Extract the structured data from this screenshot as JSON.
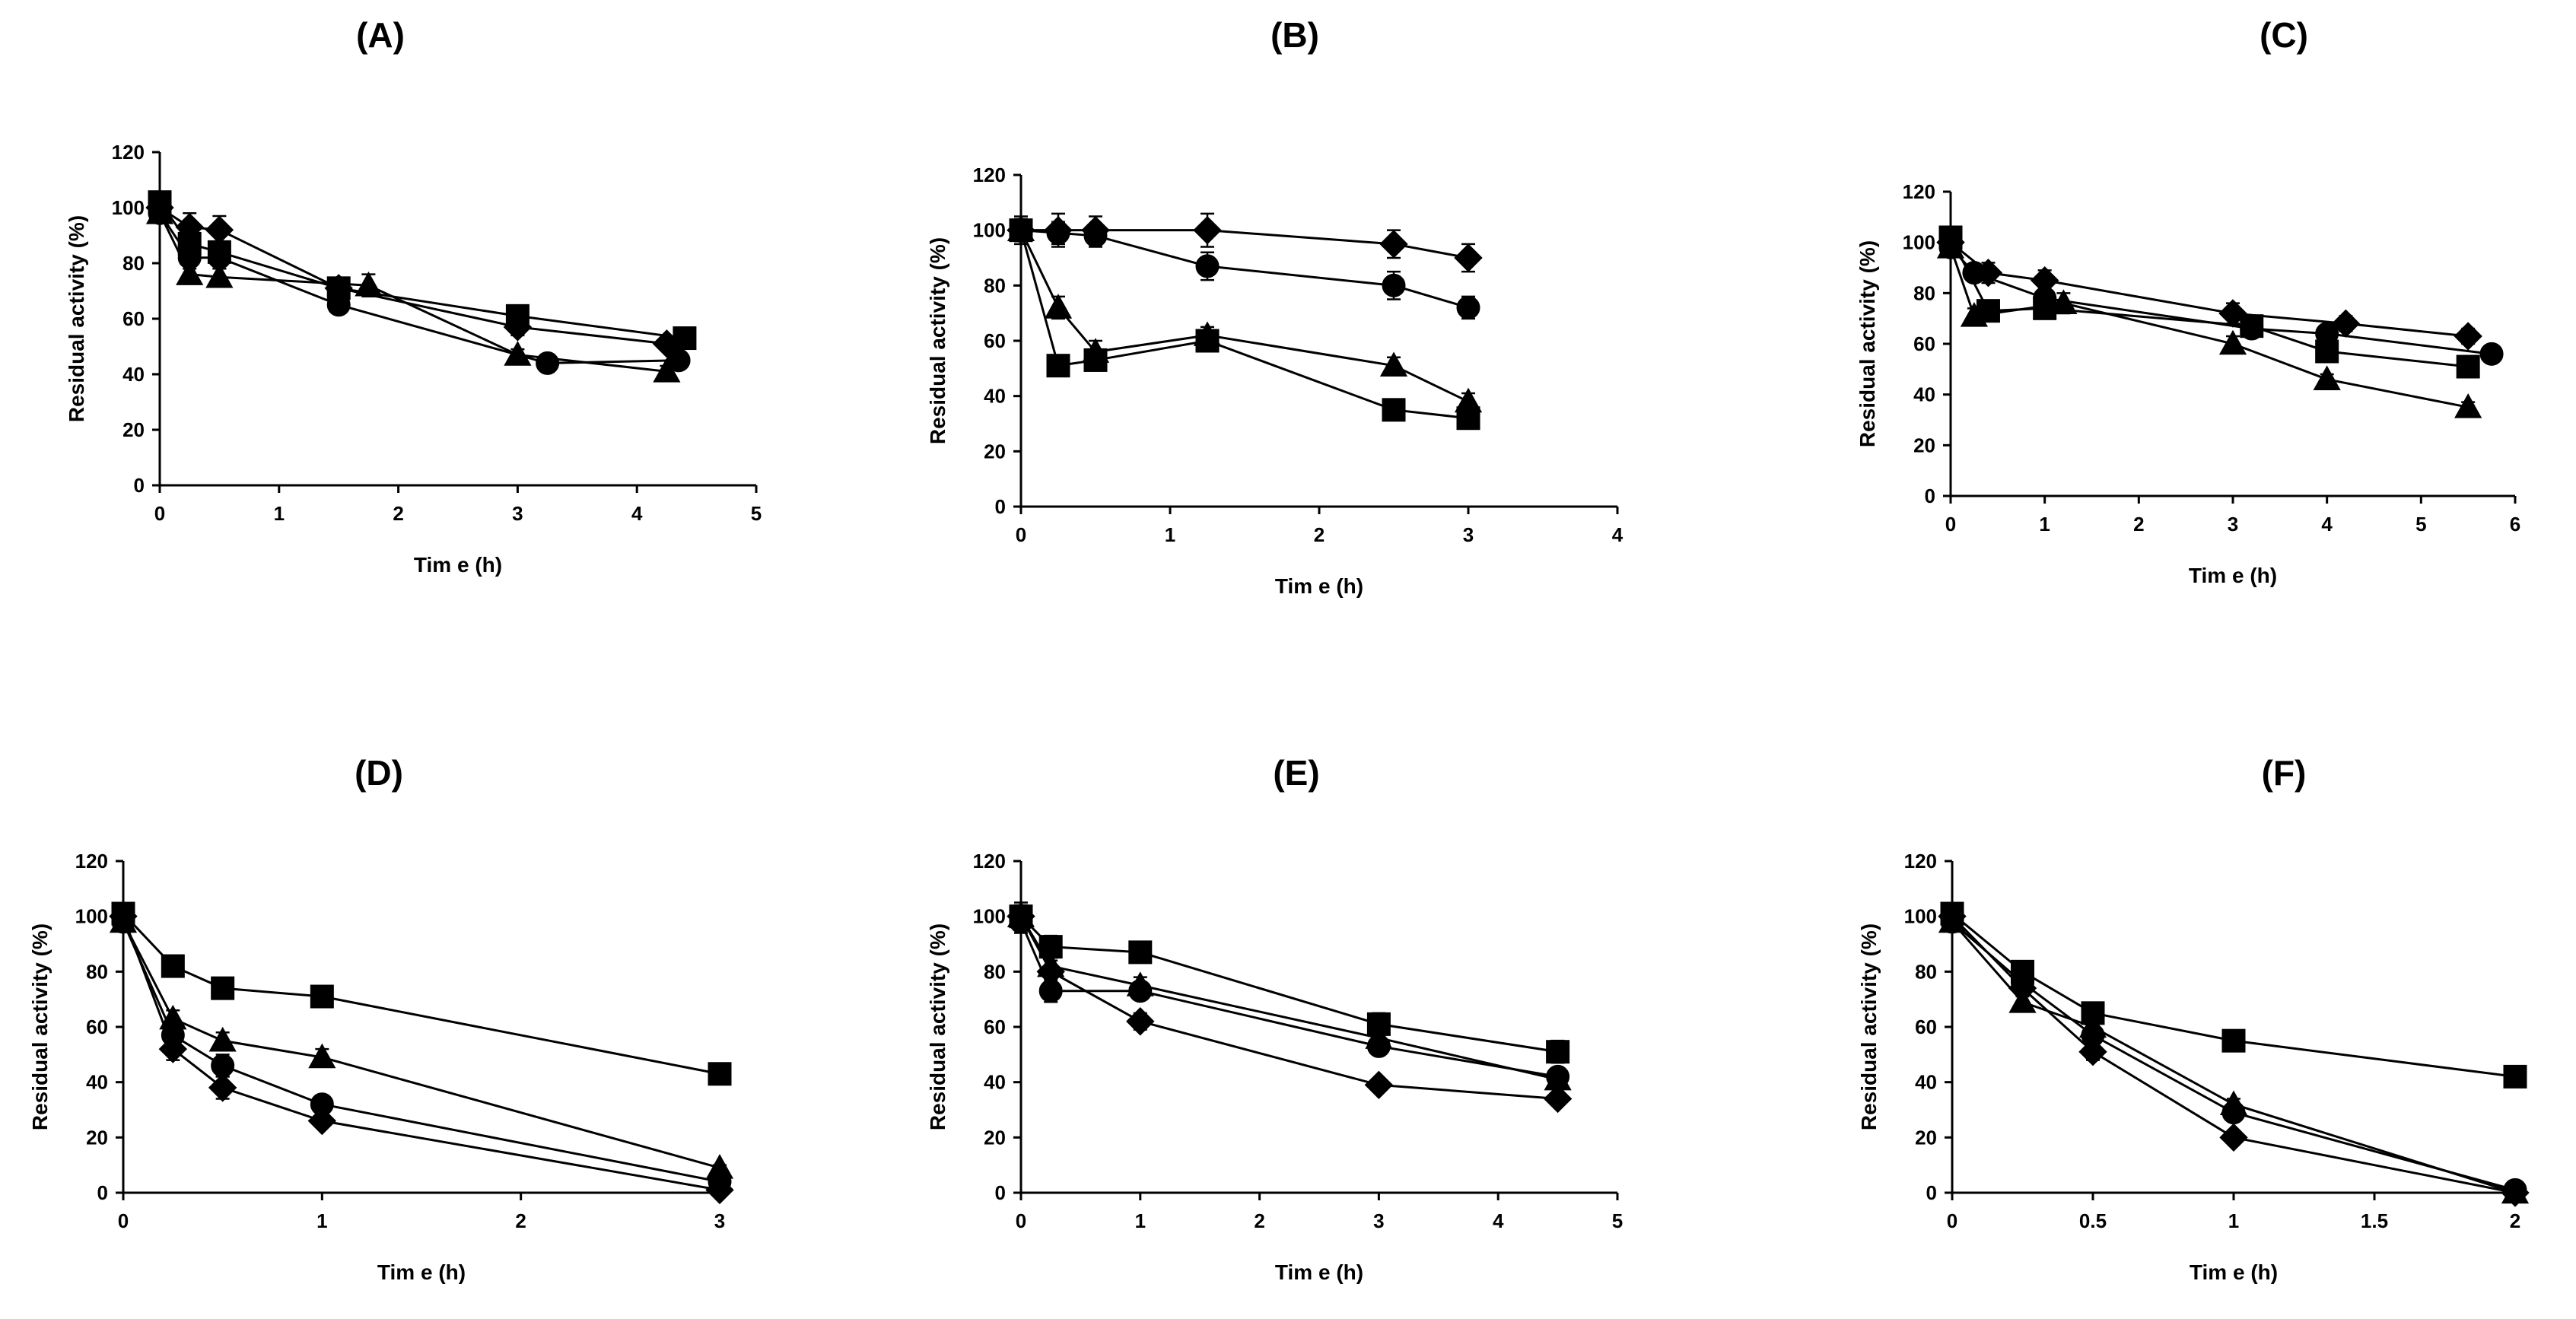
{
  "chart_data": [
    {
      "type": "line",
      "panel": "(A)",
      "xlabel": "Tim e (h)",
      "ylabel": "Residual activity (%)",
      "xlim": [
        0,
        5
      ],
      "ylim": [
        0,
        120
      ],
      "xticks": [
        "0",
        "1",
        "2",
        "3",
        "4",
        "5"
      ],
      "yticks": [
        "0",
        "20",
        "40",
        "60",
        "80",
        "100",
        "120"
      ],
      "series": [
        {
          "marker": "diamond",
          "x": [
            0,
            0.25,
            0.5,
            1.5,
            3,
            4.25
          ],
          "y": [
            100,
            93,
            92,
            71,
            57,
            51
          ],
          "err": [
            4,
            5,
            5,
            3,
            3,
            2
          ]
        },
        {
          "marker": "circle",
          "x": [
            0,
            0.25,
            0.5,
            1.5,
            3.25,
            4.35
          ],
          "y": [
            98,
            82,
            82,
            65,
            44,
            45
          ],
          "err": [
            3,
            4,
            4,
            3,
            2,
            2
          ]
        },
        {
          "marker": "triangle",
          "x": [
            0,
            0.25,
            0.5,
            1.75,
            3,
            4.25
          ],
          "y": [
            98,
            76,
            75,
            72,
            47,
            41
          ],
          "err": [
            3,
            3,
            3,
            4,
            2,
            2
          ]
        },
        {
          "marker": "square",
          "x": [
            0,
            0.25,
            0.5,
            1.5,
            3,
            4.4
          ],
          "y": [
            102,
            87,
            84,
            71,
            61,
            53
          ],
          "err": [
            3,
            3,
            3,
            2,
            2,
            2
          ]
        }
      ]
    },
    {
      "type": "line",
      "panel": "(B)",
      "xlabel": "Tim e (h)",
      "ylabel": "Residual activity (%)",
      "xlim": [
        0,
        4
      ],
      "ylim": [
        0,
        120
      ],
      "xticks": [
        "0",
        "1",
        "2",
        "3",
        "4"
      ],
      "yticks": [
        "0",
        "20",
        "40",
        "60",
        "80",
        "100",
        "120"
      ],
      "series": [
        {
          "marker": "diamond",
          "x": [
            0,
            0.25,
            0.5,
            1.25,
            2.5,
            3
          ],
          "y": [
            100,
            100,
            100,
            100,
            95,
            90
          ],
          "err": [
            5,
            6,
            5,
            6,
            5,
            5
          ]
        },
        {
          "marker": "circle",
          "x": [
            0,
            0.25,
            0.5,
            1.25,
            2.5,
            3
          ],
          "y": [
            100,
            99,
            98,
            87,
            80,
            72
          ],
          "err": [
            4,
            4,
            4,
            5,
            5,
            4
          ]
        },
        {
          "marker": "triangle",
          "x": [
            0,
            0.25,
            0.5,
            1.25,
            2.5,
            3
          ],
          "y": [
            100,
            72,
            56,
            62,
            51,
            38
          ],
          "err": [
            4,
            4,
            4,
            3,
            3,
            3
          ]
        },
        {
          "marker": "square",
          "x": [
            0,
            0.25,
            0.5,
            1.25,
            2.5,
            3
          ],
          "y": [
            100,
            51,
            53,
            60,
            35,
            32
          ],
          "err": [
            4,
            3,
            3,
            3,
            3,
            3
          ]
        }
      ]
    },
    {
      "type": "line",
      "panel": "(C)",
      "xlabel": "Tim e (h)",
      "ylabel": "Residual activity (%)",
      "xlim": [
        0,
        6
      ],
      "ylim": [
        0,
        120
      ],
      "xticks": [
        "0",
        "1",
        "2",
        "3",
        "4",
        "5",
        "6"
      ],
      "yticks": [
        "0",
        "20",
        "40",
        "60",
        "80",
        "100",
        "120"
      ],
      "series": [
        {
          "marker": "diamond",
          "x": [
            0,
            0.4,
            1,
            3,
            4.2,
            5.5
          ],
          "y": [
            100,
            88,
            85,
            72,
            68,
            63
          ],
          "err": [
            4,
            4,
            4,
            4,
            3,
            3
          ]
        },
        {
          "marker": "circle",
          "x": [
            0,
            0.25,
            1,
            3.2,
            4,
            5.75
          ],
          "y": [
            98,
            88,
            78,
            66,
            64,
            56
          ],
          "err": [
            3,
            3,
            3,
            3,
            3,
            3
          ]
        },
        {
          "marker": "triangle",
          "x": [
            0,
            0.25,
            1.2,
            3,
            4,
            5.5
          ],
          "y": [
            98,
            71,
            76,
            60,
            46,
            35
          ],
          "err": [
            3,
            3,
            4,
            3,
            2,
            2
          ]
        },
        {
          "marker": "square",
          "x": [
            0,
            0.4,
            1,
            3.2,
            4,
            5.5
          ],
          "y": [
            102,
            73,
            74,
            67,
            57,
            51
          ],
          "err": [
            3,
            3,
            3,
            3,
            3,
            2
          ]
        }
      ]
    },
    {
      "type": "line",
      "panel": "(D)",
      "xlabel": "Tim e (h)",
      "ylabel": "Residual activity (%)",
      "xlim": [
        0,
        3
      ],
      "ylim": [
        0,
        120
      ],
      "xticks": [
        "0",
        "1",
        "2",
        "3"
      ],
      "yticks": [
        "0",
        "20",
        "40",
        "60",
        "80",
        "100",
        "120"
      ],
      "series": [
        {
          "marker": "diamond",
          "x": [
            0,
            0.25,
            0.5,
            1,
            3
          ],
          "y": [
            100,
            52,
            38,
            26,
            1
          ],
          "err": [
            3,
            4,
            4,
            2,
            1
          ]
        },
        {
          "marker": "circle",
          "x": [
            0,
            0.25,
            0.5,
            1,
            3
          ],
          "y": [
            98,
            57,
            46,
            32,
            4
          ],
          "err": [
            3,
            4,
            4,
            3,
            1
          ]
        },
        {
          "marker": "triangle",
          "x": [
            0,
            0.25,
            0.5,
            1,
            3
          ],
          "y": [
            98,
            63,
            55,
            49,
            9
          ],
          "err": [
            3,
            3,
            3,
            3,
            1
          ]
        },
        {
          "marker": "square",
          "x": [
            0,
            0.25,
            0.5,
            1,
            3
          ],
          "y": [
            101,
            82,
            74,
            71,
            43
          ],
          "err": [
            2,
            2,
            2,
            2,
            2
          ]
        }
      ]
    },
    {
      "type": "line",
      "panel": "(E)",
      "xlabel": "Tim e (h)",
      "ylabel": "Residual activity (%)",
      "xlim": [
        0,
        5
      ],
      "ylim": [
        0,
        120
      ],
      "xticks": [
        "0",
        "1",
        "2",
        "3",
        "4",
        "5"
      ],
      "yticks": [
        "0",
        "20",
        "40",
        "60",
        "80",
        "100",
        "120"
      ],
      "series": [
        {
          "marker": "diamond",
          "x": [
            0,
            0.25,
            1,
            3,
            4.5
          ],
          "y": [
            100,
            80,
            62,
            39,
            34
          ],
          "err": [
            4,
            4,
            3,
            2,
            2
          ]
        },
        {
          "marker": "circle",
          "x": [
            0,
            0.25,
            1,
            3,
            4.5
          ],
          "y": [
            98,
            73,
            73,
            53,
            42
          ],
          "err": [
            4,
            4,
            3,
            3,
            3
          ]
        },
        {
          "marker": "triangle",
          "x": [
            0,
            0.25,
            1,
            3,
            4.5
          ],
          "y": [
            100,
            82,
            75,
            56,
            41
          ],
          "err": [
            5,
            4,
            3,
            3,
            3
          ]
        },
        {
          "marker": "square",
          "x": [
            0,
            0.25,
            1,
            3,
            4.5
          ],
          "y": [
            100,
            89,
            87,
            61,
            51
          ],
          "err": [
            4,
            4,
            3,
            4,
            4
          ]
        }
      ]
    },
    {
      "type": "line",
      "panel": "(F)",
      "xlabel": "Tim e (h)",
      "ylabel": "Residual activity (%)",
      "xlim": [
        0,
        2
      ],
      "ylim": [
        0,
        120
      ],
      "xticks": [
        "0",
        "0.5",
        "1",
        "1.5",
        "2"
      ],
      "yticks": [
        "0",
        "20",
        "40",
        "60",
        "80",
        "100",
        "120"
      ],
      "series": [
        {
          "marker": "diamond",
          "x": [
            0,
            0.25,
            0.5,
            1,
            2
          ],
          "y": [
            100,
            74,
            51,
            20,
            0
          ],
          "err": [
            3,
            3,
            3,
            2,
            1
          ]
        },
        {
          "marker": "circle",
          "x": [
            0,
            0.25,
            0.5,
            1,
            2
          ],
          "y": [
            98,
            76,
            57,
            29,
            1
          ],
          "err": [
            3,
            3,
            3,
            2,
            1
          ]
        },
        {
          "marker": "triangle",
          "x": [
            0,
            0.25,
            0.5,
            1,
            2
          ],
          "y": [
            98,
            69,
            60,
            32,
            0
          ],
          "err": [
            3,
            3,
            3,
            2,
            1
          ]
        },
        {
          "marker": "square",
          "x": [
            0,
            0.25,
            0.5,
            1,
            2
          ],
          "y": [
            101,
            80,
            65,
            55,
            42
          ],
          "err": [
            2,
            2,
            2,
            2,
            2
          ]
        }
      ]
    }
  ]
}
